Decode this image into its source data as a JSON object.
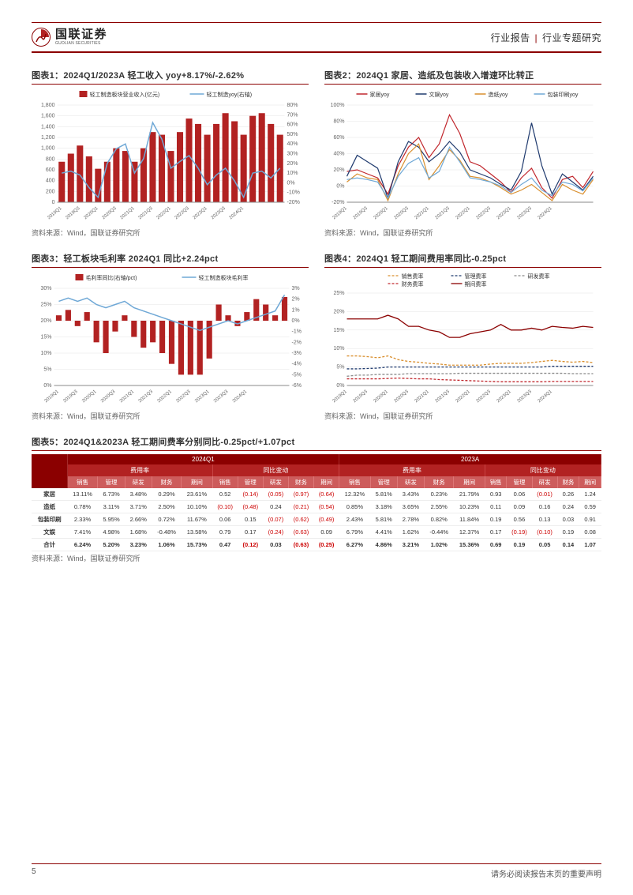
{
  "header": {
    "brand_cn": "国联证券",
    "brand_en": "GUOLIAN SECURITIES",
    "right_a": "行业报告",
    "right_b": "行业专题研究",
    "logo_color": "#8b0000",
    "logo_accent": "#b22222"
  },
  "footer": {
    "page": "5",
    "notice": "请务必阅读报告末页的重要声明"
  },
  "colors": {
    "brand_red": "#8b0000",
    "bar_red": "#b22222",
    "line_blue": "#6fa8d6",
    "line_red": "#c1272d",
    "line_navy": "#1f3a6e",
    "line_orange": "#d98f2e",
    "line_gray": "#8a8a8a",
    "grid": "#e5e5e5",
    "axis": "#888"
  },
  "chart1": {
    "title": "图表1：2024Q1/2023A 轻工收入 yoy+8.17%/-2.62%",
    "legend_bar": "轻工制造板块营业收入(亿元)",
    "legend_line": "轻工制造yoy(右轴)",
    "x_labels": [
      "2019Q1",
      "2019Q3",
      "2020Q1",
      "2020Q3",
      "2021Q1",
      "2021Q3",
      "2022Q1",
      "2022Q3",
      "2023Q1",
      "2023Q3",
      "2024Q1"
    ],
    "bars": [
      750,
      900,
      1050,
      850,
      620,
      750,
      1000,
      950,
      750,
      1000,
      1300,
      1250,
      950,
      1300,
      1550,
      1450,
      1250,
      1450,
      1650,
      1500,
      1250,
      1600,
      1650,
      1450,
      1250
    ],
    "line": [
      10,
      12,
      8,
      -5,
      -15,
      20,
      35,
      40,
      10,
      25,
      62,
      45,
      15,
      22,
      28,
      15,
      -2,
      8,
      15,
      2,
      -15,
      10,
      12,
      5,
      15
    ],
    "y1_ticks": [
      0,
      200,
      400,
      600,
      800,
      1000,
      1200,
      1400,
      1600,
      1800
    ],
    "y2_ticks": [
      -20,
      -10,
      0,
      10,
      20,
      30,
      40,
      50,
      60,
      70,
      80
    ],
    "source": "资料来源：Wind，国联证券研究所"
  },
  "chart2": {
    "title": "图表2：2024Q1 家居、造纸及包装收入增速环比转正",
    "legend": [
      "家居yoy",
      "文娱yoy",
      "造纸yoy",
      "包装印刷yoy"
    ],
    "legend_colors": [
      "#c1272d",
      "#1f3a6e",
      "#d98f2e",
      "#6fa8d6"
    ],
    "x_labels": [
      "2019Q1",
      "2019Q3",
      "2020Q1",
      "2020Q3",
      "2021Q1",
      "2021Q3",
      "2022Q1",
      "2022Q3",
      "2023Q1",
      "2023Q3",
      "2024Q1"
    ],
    "y_ticks": [
      -20,
      0,
      20,
      40,
      60,
      80,
      100
    ],
    "series": {
      "home": [
        18,
        20,
        15,
        10,
        -10,
        25,
        48,
        60,
        35,
        52,
        88,
        65,
        30,
        25,
        15,
        5,
        -8,
        10,
        22,
        -2,
        -15,
        8,
        12,
        -2,
        18
      ],
      "wenyu": [
        12,
        38,
        30,
        22,
        -15,
        30,
        55,
        48,
        30,
        40,
        55,
        42,
        20,
        15,
        10,
        2,
        -5,
        18,
        78,
        25,
        -10,
        15,
        5,
        -5,
        12
      ],
      "paper": [
        5,
        15,
        10,
        8,
        -18,
        15,
        40,
        52,
        8,
        25,
        45,
        32,
        12,
        10,
        5,
        -2,
        -10,
        -5,
        2,
        -8,
        -18,
        2,
        -5,
        -10,
        8
      ],
      "pkg": [
        8,
        10,
        8,
        5,
        -15,
        12,
        28,
        35,
        10,
        18,
        48,
        30,
        10,
        8,
        5,
        0,
        -8,
        2,
        10,
        -5,
        -12,
        5,
        2,
        -6,
        10
      ]
    },
    "source": "资料来源：Wind，国联证券研究所"
  },
  "chart3": {
    "title": "图表3：轻工板块毛利率 2024Q1 同比+2.24pct",
    "legend_bar": "毛利率同比(右轴/pct)",
    "legend_line": "轻工制造板块毛利率",
    "x_labels": [
      "2019Q1",
      "2019Q3",
      "2020Q1",
      "2020Q3",
      "2021Q1",
      "2021Q3",
      "2022Q1",
      "2022Q3",
      "2023Q1",
      "2023Q3",
      "2024Q1"
    ],
    "line": [
      26,
      27,
      26,
      27,
      25,
      24,
      25,
      26,
      24,
      23,
      22,
      21,
      20,
      19,
      18,
      17,
      18,
      19,
      20,
      19,
      20,
      21,
      22,
      23,
      28
    ],
    "bars": [
      0.5,
      1,
      -0.5,
      0.8,
      -2,
      -3,
      -1,
      0.5,
      -1.5,
      -2.5,
      -2,
      -3,
      -4,
      -5,
      -5,
      -5,
      -3.5,
      1.5,
      0.5,
      -0.5,
      0.8,
      2,
      1.5,
      0.5,
      2.2
    ],
    "y1_ticks": [
      0,
      5,
      10,
      15,
      20,
      25,
      30
    ],
    "y2_ticks": [
      -6,
      -5,
      -4,
      -3,
      -2,
      -1,
      0,
      1,
      2,
      3
    ],
    "source": "资料来源：Wind，国联证券研究所"
  },
  "chart4": {
    "title": "图表4：2024Q1 轻工期间费用率同比-0.25pct",
    "legend": [
      "销售费率",
      "管理费率",
      "研发费率",
      "财务费率",
      "期间费率"
    ],
    "legend_colors": [
      "#d98f2e",
      "#1f3a6e",
      "#8a8a8a",
      "#c1272d",
      "#8b0000"
    ],
    "legend_dash": [
      true,
      true,
      true,
      true,
      false
    ],
    "x_labels": [
      "2019Q1",
      "2019Q3",
      "2020Q1",
      "2020Q3",
      "2021Q1",
      "2021Q3",
      "2022Q1",
      "2022Q3",
      "2023Q1",
      "2023Q3",
      "2024Q1"
    ],
    "y_ticks": [
      0,
      5,
      10,
      15,
      20,
      25
    ],
    "series": {
      "sales": [
        8,
        8,
        7.8,
        7.5,
        8,
        7,
        6.5,
        6.3,
        6,
        5.8,
        5.5,
        5.5,
        5.5,
        5.5,
        5.8,
        6,
        6,
        6,
        6.2,
        6.5,
        6.8,
        6.5,
        6.3,
        6.5,
        6.2
      ],
      "mgmt": [
        4.5,
        4.5,
        4.6,
        4.7,
        5,
        5,
        5,
        5,
        5,
        5,
        5,
        5,
        5,
        5,
        5,
        5,
        5,
        5,
        5,
        5,
        5.2,
        5.2,
        5.2,
        5.2,
        5.2
      ],
      "rd": [
        2.5,
        2.8,
        2.8,
        3,
        3,
        3,
        3.2,
        3.2,
        3.2,
        3.2,
        3.2,
        3.3,
        3.3,
        3.3,
        3.3,
        3.3,
        3.3,
        3.3,
        3.3,
        3.3,
        3.3,
        3.3,
        3.2,
        3.2,
        3.2
      ],
      "fin": [
        1.8,
        1.8,
        1.8,
        1.8,
        1.9,
        2,
        1.9,
        1.8,
        1.8,
        1.6,
        1.5,
        1.4,
        1.3,
        1.2,
        1.1,
        1,
        1,
        1,
        1,
        1,
        1.1,
        1.1,
        1.1,
        1.1,
        1.1
      ],
      "period": [
        18,
        18,
        18,
        18,
        19,
        18,
        16,
        16,
        15,
        14.5,
        13,
        13,
        14,
        14.5,
        15,
        16.5,
        15,
        15,
        15.5,
        15,
        16,
        15.7,
        15.5,
        16,
        15.7
      ]
    },
    "source": "资料来源：Wind，国联证券研究所"
  },
  "table5": {
    "title": "图表5：2024Q1&2023A 轻工期间费率分别同比-0.25pct/+1.07pct",
    "top_groups": [
      "2024Q1",
      "2023A"
    ],
    "mid_groups": [
      "费用率",
      "同比变动",
      "费用率",
      "同比变动"
    ],
    "cols": [
      "销售",
      "管理",
      "研发",
      "财务",
      "期间",
      "销售",
      "管理",
      "研发",
      "财务",
      "期间",
      "销售",
      "管理",
      "研发",
      "财务",
      "期间",
      "销售",
      "管理",
      "研发",
      "财务",
      "期间"
    ],
    "rows": [
      {
        "label": "家居",
        "vals": [
          "13.11%",
          "6.73%",
          "3.48%",
          "0.29%",
          "23.61%",
          "0.52",
          "(0.14)",
          "(0.05)",
          "(0.97)",
          "(0.64)",
          "12.32%",
          "5.81%",
          "3.43%",
          "0.23%",
          "21.79%",
          "0.93",
          "0.06",
          "(0.01)",
          "0.26",
          "1.24"
        ]
      },
      {
        "label": "造纸",
        "vals": [
          "0.78%",
          "3.11%",
          "3.71%",
          "2.50%",
          "10.10%",
          "(0.10)",
          "(0.48)",
          "0.24",
          "(0.21)",
          "(0.54)",
          "0.85%",
          "3.18%",
          "3.65%",
          "2.55%",
          "10.23%",
          "0.11",
          "0.09",
          "0.16",
          "0.24",
          "0.59"
        ]
      },
      {
        "label": "包装印刷",
        "vals": [
          "2.33%",
          "5.95%",
          "2.66%",
          "0.72%",
          "11.67%",
          "0.06",
          "0.15",
          "(0.07)",
          "(0.62)",
          "(0.49)",
          "2.43%",
          "5.81%",
          "2.78%",
          "0.82%",
          "11.84%",
          "0.19",
          "0.56",
          "0.13",
          "0.03",
          "0.91"
        ]
      },
      {
        "label": "文娱",
        "vals": [
          "7.41%",
          "4.98%",
          "1.68%",
          "-0.48%",
          "13.58%",
          "0.79",
          "0.17",
          "(0.24)",
          "(0.63)",
          "0.09",
          "6.79%",
          "4.41%",
          "1.62%",
          "-0.44%",
          "12.37%",
          "0.17",
          "(0.19)",
          "(0.10)",
          "0.19",
          "0.08"
        ]
      },
      {
        "label": "合计",
        "vals": [
          "6.24%",
          "5.20%",
          "3.23%",
          "1.06%",
          "15.73%",
          "0.47",
          "(0.12)",
          "0.03",
          "(0.63)",
          "(0.25)",
          "6.27%",
          "4.86%",
          "3.21%",
          "1.02%",
          "15.36%",
          "0.69",
          "0.19",
          "0.05",
          "0.14",
          "1.07"
        ]
      }
    ],
    "source": "资料来源：Wind，国联证券研究所"
  }
}
